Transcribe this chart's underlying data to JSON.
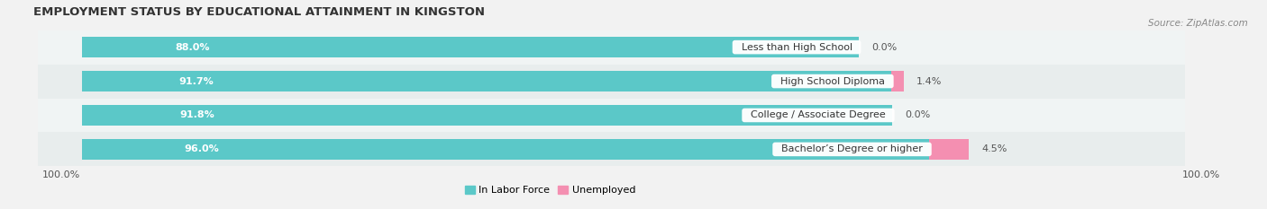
{
  "title": "EMPLOYMENT STATUS BY EDUCATIONAL ATTAINMENT IN KINGSTON",
  "source": "Source: ZipAtlas.com",
  "categories": [
    "Less than High School",
    "High School Diploma",
    "College / Associate Degree",
    "Bachelor’s Degree or higher"
  ],
  "in_labor_force": [
    88.0,
    91.7,
    91.8,
    96.0
  ],
  "unemployed": [
    0.0,
    1.4,
    0.0,
    4.5
  ],
  "labor_force_color": "#5bc8c8",
  "unemployed_color": "#f48fb1",
  "row_bg_even": "#f0f4f4",
  "row_bg_odd": "#e8eded",
  "title_fontsize": 9.5,
  "source_fontsize": 7.5,
  "bar_label_fontsize": 8,
  "category_fontsize": 8,
  "axis_label_fontsize": 8,
  "legend_fontsize": 8,
  "bar_height": 0.6,
  "x_max": 100,
  "left_axis_label": "100.0%",
  "right_axis_label": "100.0%"
}
